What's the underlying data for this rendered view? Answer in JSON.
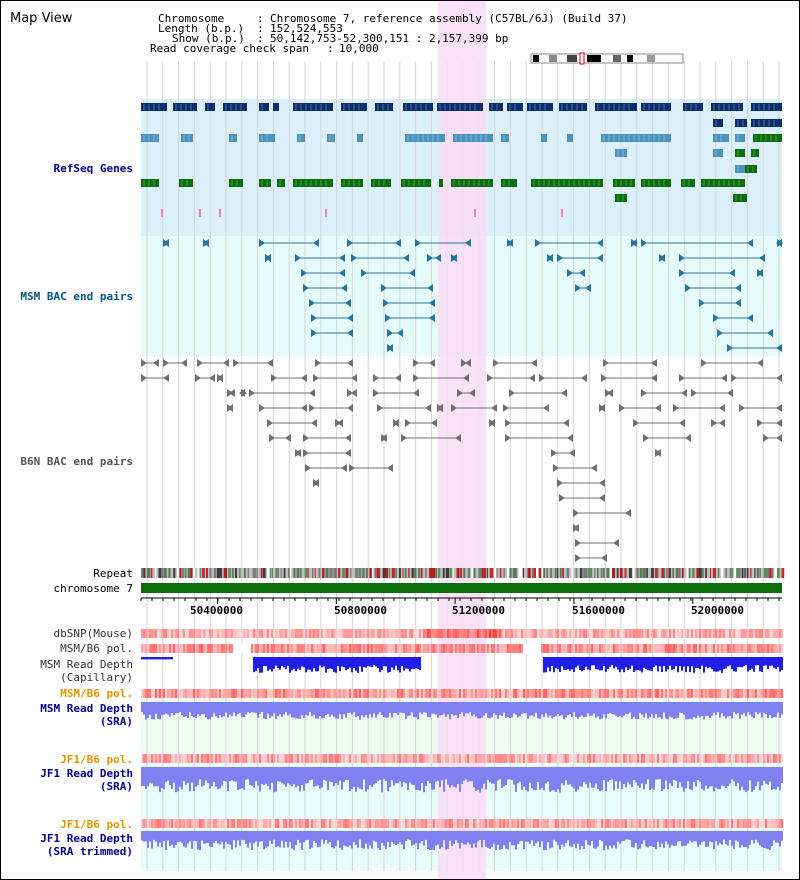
{
  "view": {
    "title": "Map View",
    "info": {
      "chromosome_label": "Chromosome",
      "chromosome_value": "Chromosome 7, reference assembly (C57BL/6J) (Build 37)",
      "length_label": "Length (b.p.)",
      "length_value": "152,524,553",
      "show_label": "Show (b.p.)",
      "show_value": "50,142,753-52,300,151 : 2,157,399 bp",
      "span_label": "Read coverage check span",
      "span_value": "10,000"
    },
    "region": {
      "start": 50142753,
      "end": 52300151
    },
    "highlight": {
      "start": 51142000,
      "end": 51305000
    }
  },
  "tracks": {
    "refseq": "RefSeq Genes",
    "msm_bac": "MSM BAC end pairs",
    "b6n_bac": "B6N BAC end pairs",
    "repeat": "Repeat",
    "chromosome": "chromosome 7",
    "dbsnp": "dbSNP(Mouse)",
    "msm_b6_pol_1": "MSM/B6 pol.",
    "msm_read_depth_cap": "MSM Read Depth\n(Capillary)",
    "msm_b6_pol_2": "MSM/B6 pol.",
    "msm_read_depth_sra": "MSM Read Depth\n(SRA)",
    "jf1_b6_pol_1": "JF1/B6 pol.",
    "jf1_read_depth_sra": "JF1 Read Depth\n(SRA)",
    "jf1_b6_pol_2": "JF1/B6 pol.",
    "jf1_read_depth_trimmed": "JF1 Read Depth\n(SRA trimmed)"
  },
  "axis": {
    "ticks": [
      "50400000",
      "50800000",
      "51200000",
      "51600000",
      "52000000"
    ],
    "tick_values": [
      50400000,
      50800000,
      51200000,
      51600000,
      52000000
    ]
  },
  "colors": {
    "refseq_bg": "#dbf0fb",
    "bac_bg": "#e6fbfb",
    "highlight": "#f8dcf4",
    "gene_dark": "#0b2f6e",
    "gene_light": "#4d93c0",
    "gene_green": "#0a6e0a",
    "chromosome": "#0a6e0a",
    "msm_label": "#005580",
    "label_blue": "#00008b",
    "label_orange": "#e69500",
    "pol_red": "#e33a3a",
    "depth_blue": "#1e1ee6",
    "depth_light": "#8080f0"
  }
}
